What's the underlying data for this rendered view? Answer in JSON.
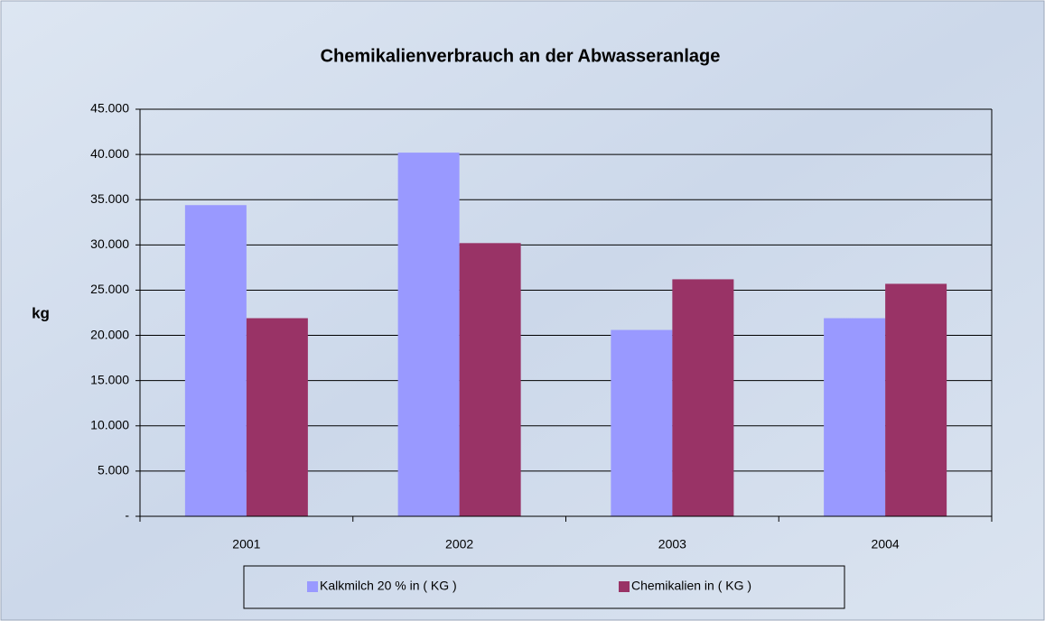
{
  "chart_data": {
    "type": "bar",
    "title": "Chemikalienverbrauch an der Abwasseranlage",
    "y_label": "kg",
    "categories": [
      "2001",
      "2002",
      "2003",
      "2004"
    ],
    "series": [
      {
        "name": "Kalkmilch 20 % in ( KG )",
        "color": "#9999ff",
        "values": [
          34400,
          40200,
          20600,
          21900
        ]
      },
      {
        "name": "Chemikalien in ( KG )",
        "color": "#993366",
        "values": [
          21900,
          30200,
          26200,
          25700
        ]
      }
    ],
    "ylim": [
      0,
      45000
    ],
    "yticks": [
      {
        "value": 0,
        "label": "-"
      },
      {
        "value": 5000,
        "label": "5.000"
      },
      {
        "value": 10000,
        "label": "10.000"
      },
      {
        "value": 15000,
        "label": "15.000"
      },
      {
        "value": 20000,
        "label": "20.000"
      },
      {
        "value": 25000,
        "label": "25.000"
      },
      {
        "value": 30000,
        "label": "30.000"
      },
      {
        "value": 35000,
        "label": "35.000"
      },
      {
        "value": 40000,
        "label": "40.000"
      },
      {
        "value": 45000,
        "label": "45.000"
      }
    ],
    "grid": true
  }
}
